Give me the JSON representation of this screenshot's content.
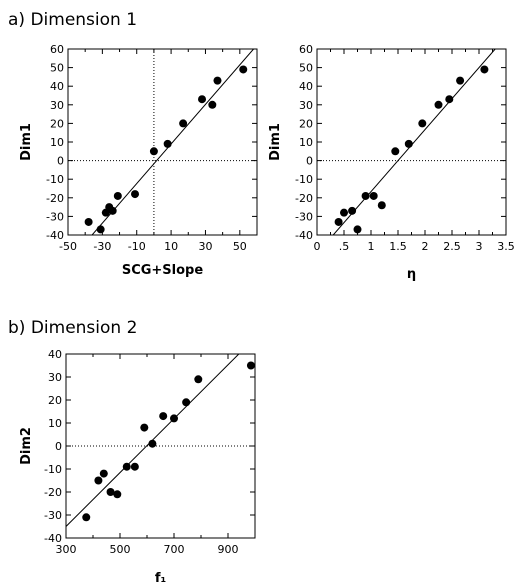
{
  "sections": [
    {
      "label": "a) Dimension 1"
    },
    {
      "label": "b) Dimension 2"
    }
  ],
  "chart_data": [
    {
      "type": "scatter",
      "xlabel": "SCG+Slope",
      "ylabel": "Dim1",
      "xlim": [
        -50,
        60
      ],
      "ylim": [
        -40,
        60
      ],
      "xticks": [
        -50,
        -30,
        -10,
        10,
        30,
        50
      ],
      "xtick_labels": [
        "-50",
        "-30",
        "-10",
        "10",
        "30",
        "50"
      ],
      "yticks": [
        -40,
        -30,
        -20,
        -10,
        0,
        10,
        20,
        30,
        40,
        50,
        60
      ],
      "ytick_labels": [
        "-40",
        "-30",
        "-20",
        "-10",
        "0",
        "10",
        "20",
        "30",
        "40",
        "50",
        "60"
      ],
      "vline": 0,
      "hline": 0,
      "fit_line": [
        [
          -36,
          -40
        ],
        [
          58,
          60
        ]
      ],
      "points": [
        [
          -38,
          -33
        ],
        [
          -31,
          -37
        ],
        [
          -28,
          -28
        ],
        [
          -26,
          -25
        ],
        [
          -24,
          -27
        ],
        [
          -21,
          -19
        ],
        [
          -11,
          -18
        ],
        [
          0,
          5
        ],
        [
          8,
          9
        ],
        [
          17,
          20
        ],
        [
          28,
          33
        ],
        [
          34,
          30
        ],
        [
          37,
          43
        ],
        [
          52,
          49
        ]
      ]
    },
    {
      "type": "scatter",
      "xlabel": "η",
      "ylabel": "Dim1",
      "xlim": [
        0,
        3.5
      ],
      "ylim": [
        -40,
        60
      ],
      "xticks": [
        0,
        0.5,
        1,
        1.5,
        2,
        2.5,
        3,
        3.5
      ],
      "xtick_labels": [
        "0",
        ".5",
        "1",
        "1.5",
        "2",
        "2.5",
        "3",
        "3.5"
      ],
      "yticks": [
        -40,
        -30,
        -20,
        -10,
        0,
        10,
        20,
        30,
        40,
        50,
        60
      ],
      "ytick_labels": [
        "-40",
        "-30",
        "-20",
        "-10",
        "0",
        "10",
        "20",
        "30",
        "40",
        "50",
        "60"
      ],
      "hline": 0,
      "fit_line": [
        [
          0.3,
          -40
        ],
        [
          3.3,
          60
        ]
      ],
      "points": [
        [
          0.4,
          -33
        ],
        [
          0.5,
          -28
        ],
        [
          0.65,
          -27
        ],
        [
          0.75,
          -37
        ],
        [
          0.9,
          -19
        ],
        [
          1.05,
          -19
        ],
        [
          1.2,
          -24
        ],
        [
          1.45,
          5
        ],
        [
          1.7,
          9
        ],
        [
          1.95,
          20
        ],
        [
          2.25,
          30
        ],
        [
          2.45,
          33
        ],
        [
          2.65,
          43
        ],
        [
          3.1,
          49
        ]
      ]
    },
    {
      "type": "scatter",
      "xlabel": "f₁",
      "ylabel": "Dim2",
      "xlim": [
        300,
        1000
      ],
      "ylim": [
        -40,
        40
      ],
      "xticks": [
        300,
        500,
        700,
        900
      ],
      "xtick_labels": [
        "300",
        "500",
        "700",
        "900"
      ],
      "yticks": [
        -40,
        -30,
        -20,
        -10,
        0,
        10,
        20,
        30,
        40
      ],
      "ytick_labels": [
        "-40",
        "-30",
        "-20",
        "-10",
        "0",
        "10",
        "20",
        "30",
        "40"
      ],
      "hline": 0,
      "fit_line": [
        [
          300,
          -35
        ],
        [
          940,
          40
        ]
      ],
      "points": [
        [
          375,
          -31
        ],
        [
          420,
          -15
        ],
        [
          440,
          -12
        ],
        [
          465,
          -20
        ],
        [
          490,
          -21
        ],
        [
          525,
          -9
        ],
        [
          555,
          -9
        ],
        [
          590,
          8
        ],
        [
          620,
          1
        ],
        [
          660,
          13
        ],
        [
          700,
          12
        ],
        [
          745,
          19
        ],
        [
          790,
          29
        ],
        [
          985,
          35
        ]
      ]
    }
  ]
}
